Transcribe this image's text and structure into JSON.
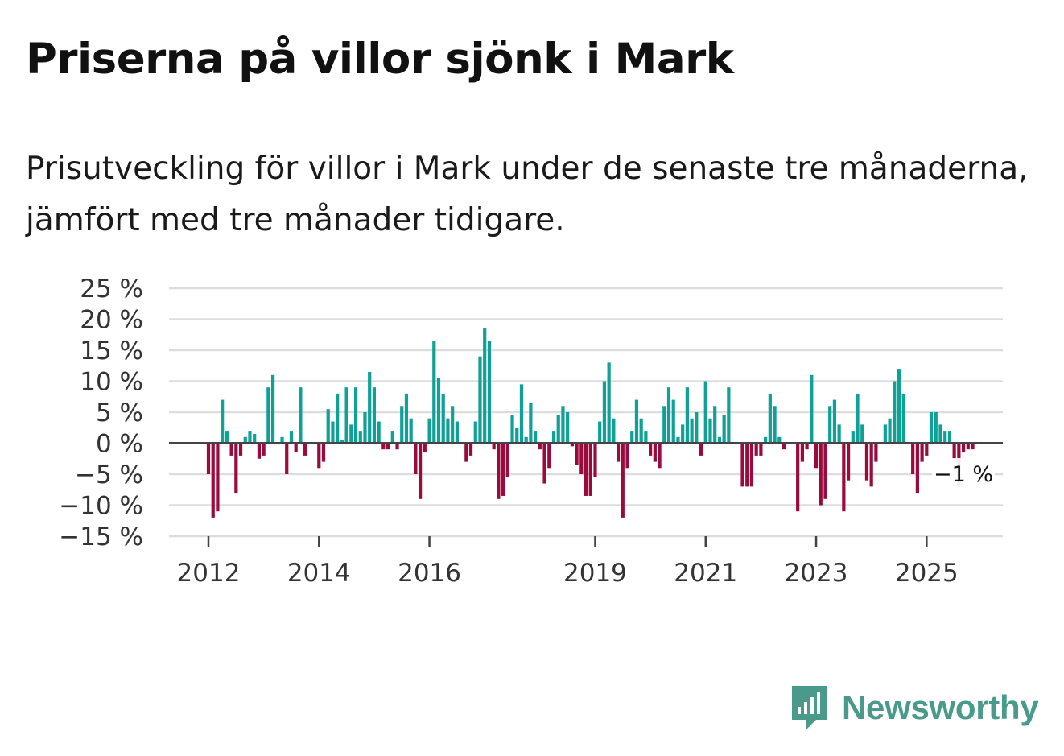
{
  "title": "Priserna på villor sjönk i Mark",
  "subtitle": "Prisutveckling för villor i Mark under de senaste tre månaderna, jämfört med tre månader tidigare.",
  "brand": {
    "name": "Newsworthy",
    "color": "#4a9a8c"
  },
  "colors": {
    "positive": "#0fa096",
    "negative": "#9b0a3c",
    "gridline": "#dddddd",
    "zeroline": "#444444"
  },
  "chart_data": {
    "type": "bar",
    "title": "Priserna på villor sjönk i Mark",
    "xlabel": "",
    "ylabel": "",
    "ylim": [
      -15,
      25
    ],
    "y_ticks": [
      25,
      20,
      15,
      10,
      5,
      0,
      -5,
      -10,
      -15
    ],
    "y_tick_labels": [
      "25 %",
      "20 %",
      "15 %",
      "10 %",
      "5 %",
      "0 %",
      "−5 %",
      "−10 %",
      "−15 %"
    ],
    "x_ticks": [
      {
        "label": "2012",
        "index": 0
      },
      {
        "label": "2014",
        "index": 24
      },
      {
        "label": "2016",
        "index": 48
      },
      {
        "label": "2019",
        "index": 84
      },
      {
        "label": "2021",
        "index": 108
      },
      {
        "label": "2023",
        "index": 132
      },
      {
        "label": "2025",
        "index": 156
      }
    ],
    "end_label": "−1 %",
    "start": "2012-01",
    "frequency": "monthly",
    "values": [
      -5,
      -12,
      -11,
      7,
      2,
      -2,
      -8,
      -2,
      1,
      2,
      1.5,
      -2.5,
      -2,
      9,
      11,
      0,
      1,
      -5,
      2,
      -1.5,
      9,
      -2,
      0,
      0,
      -4,
      -3,
      5.5,
      3.5,
      8,
      0.5,
      9,
      3,
      9,
      2,
      5,
      11.5,
      9,
      3.5,
      -1,
      -1,
      2,
      -1,
      6,
      8,
      4,
      -5,
      -9,
      -1.5,
      4,
      16.5,
      10.5,
      8,
      4,
      6,
      3.5,
      0,
      -3,
      -2,
      3.5,
      14,
      18.5,
      16.5,
      -1,
      -9,
      -8.5,
      -5.5,
      4.5,
      2.5,
      9.5,
      1,
      6.5,
      2,
      -1,
      -6.5,
      -4,
      2,
      4.5,
      6,
      5,
      -0.5,
      -3.5,
      -5,
      -8.5,
      -8.5,
      -5.5,
      3.5,
      10,
      13,
      4,
      -3,
      -12,
      -4,
      2,
      7,
      4,
      2,
      -2,
      -3,
      -4,
      6,
      9,
      7,
      1,
      3,
      9,
      4,
      5,
      -2,
      10,
      4,
      6,
      1,
      4.5,
      9,
      0,
      0,
      -7,
      -7,
      -7,
      -2,
      -2,
      1,
      8,
      6,
      1,
      -1,
      0,
      0,
      -11,
      -3,
      -1,
      11,
      -4,
      -10,
      -9,
      6,
      7,
      3,
      -11,
      -6,
      2,
      8,
      3,
      -6,
      -7,
      -3,
      0,
      3,
      4,
      10,
      12,
      8,
      0,
      -5,
      -8,
      -3,
      -2,
      5,
      5,
      3,
      2,
      2,
      -2.5,
      -7,
      -1.5,
      -1,
      -1
    ]
  }
}
